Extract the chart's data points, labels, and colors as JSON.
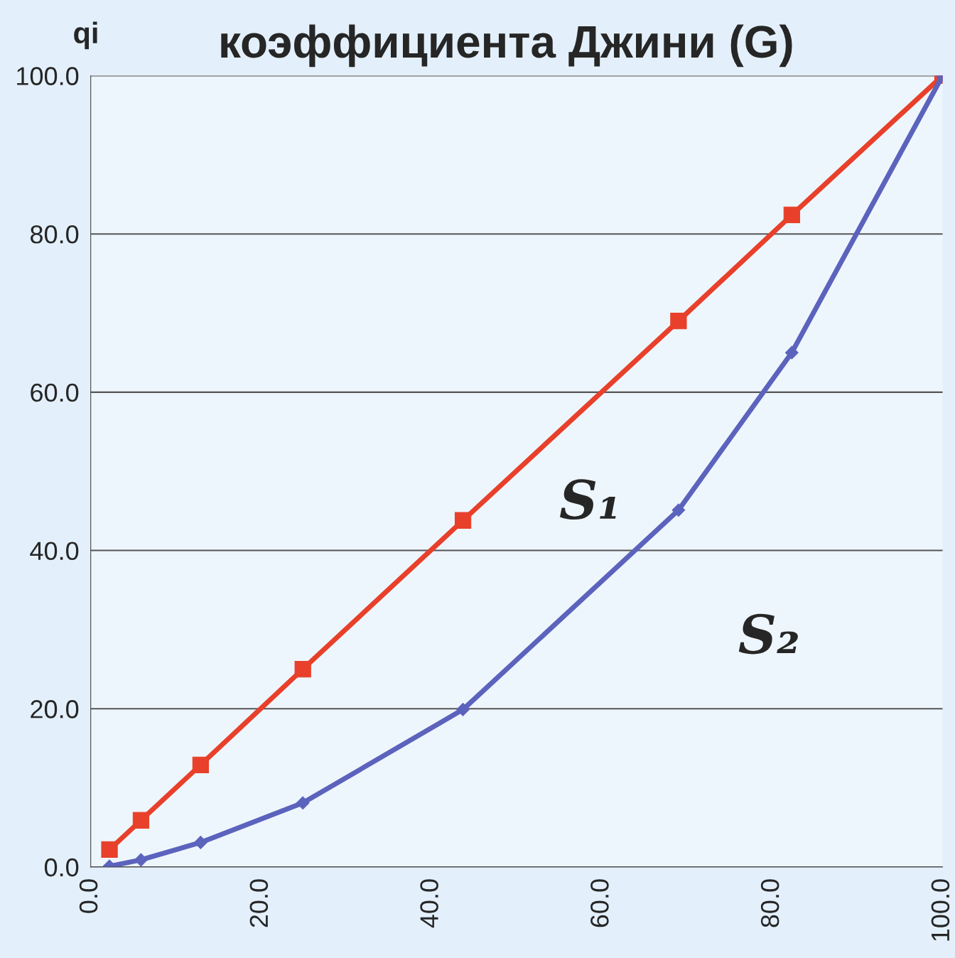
{
  "chart_data": {
    "type": "line",
    "title": "коэффициента Джини (G)",
    "ylabel": "qi",
    "x": [
      2.2,
      5.9,
      12.9,
      24.9,
      43.7,
      69.0,
      82.3,
      100
    ],
    "series": [
      {
        "color": "#e8402a",
        "marker": "square",
        "values": [
          2.2,
          5.9,
          12.9,
          25.0,
          43.8,
          69.0,
          82.4,
          100
        ]
      },
      {
        "color": "#5b63bd",
        "marker": "diamond",
        "values": [
          0.1,
          0.9,
          3.1,
          8.1,
          19.9,
          45.1,
          65.0,
          100
        ]
      }
    ],
    "xlim": [
      0,
      100
    ],
    "ylim": [
      0,
      100
    ],
    "xticks": [
      {
        "value": 0,
        "label": "0.0"
      },
      {
        "value": 20,
        "label": "20.0"
      },
      {
        "value": 40,
        "label": "40.0"
      },
      {
        "value": 60,
        "label": "60.0"
      },
      {
        "value": 80,
        "label": "80.0"
      },
      {
        "value": 100,
        "label": "100.0"
      }
    ],
    "yticks": [
      {
        "value": 0,
        "label": "0.0"
      },
      {
        "value": 20,
        "label": "20.0"
      },
      {
        "value": 40,
        "label": "40.0"
      },
      {
        "value": 60,
        "label": "60.0"
      },
      {
        "value": 80,
        "label": "80.0"
      },
      {
        "value": 100,
        "label": "100.0"
      }
    ],
    "grid": "y",
    "line_style": "solid",
    "annotations": [
      "S₁",
      "S₂"
    ]
  }
}
